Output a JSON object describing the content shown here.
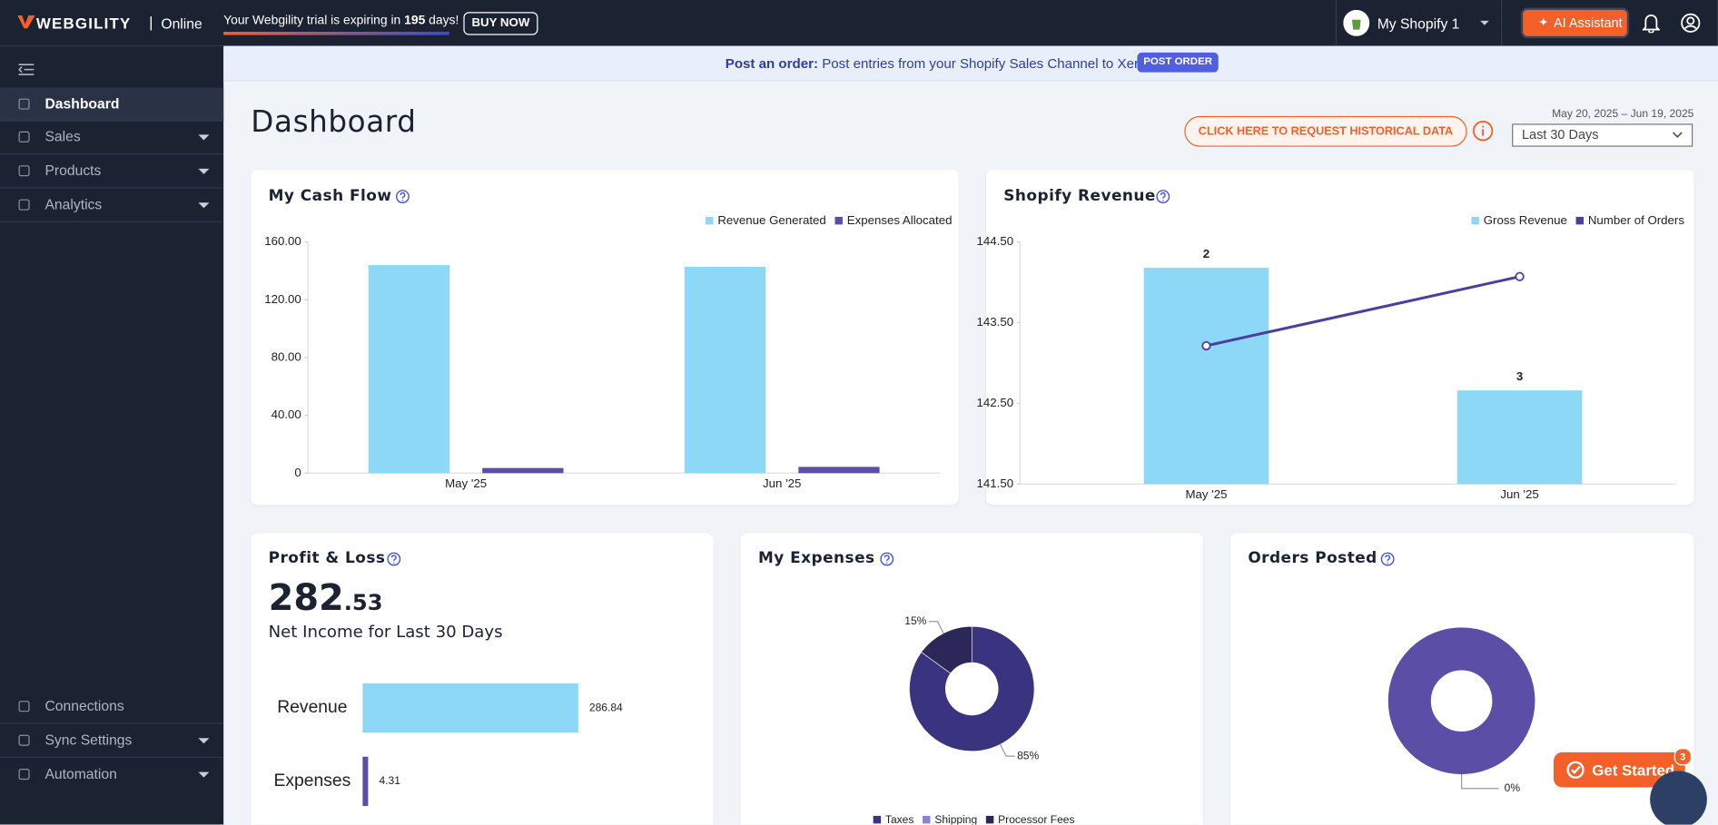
{
  "header": {
    "brand": "WEBGILITY",
    "edition": "Online",
    "trial_text": "Your Webgility trial is expiring in",
    "trial_days": "195",
    "trial_suffix": "days!",
    "buy_now": "BUY NOW",
    "store": "My Shopify 1",
    "ai_assistant": "AI Assistant"
  },
  "sidebar": {
    "items": [
      "Dashboard",
      "Sales",
      "Products",
      "Analytics"
    ],
    "bottom_items": [
      "Connections",
      "Sync Settings",
      "Automation"
    ]
  },
  "banner": {
    "label": "Post an order:",
    "text": "Post entries from your Shopify Sales Channel to Xero.",
    "button": "POST ORDER"
  },
  "page": {
    "title": "Dashboard",
    "historical_button": "CLICK HERE TO REQUEST HISTORICAL DATA",
    "date_range": "May 20, 2025 – Jun 19, 2025",
    "period": "Last 30 Days"
  },
  "cash_flow": {
    "type": "bar",
    "title": "My Cash Flow",
    "categories": [
      "May '25",
      "Jun '25"
    ],
    "series": [
      {
        "name": "Revenue Generated",
        "color": "#8dd7f7",
        "values": [
          144,
          142.84
        ]
      },
      {
        "name": "Expenses Allocated",
        "color": "#5a4ea6",
        "values": [
          3.5,
          4.3
        ]
      }
    ],
    "ylim": [
      0,
      160
    ],
    "yticks": [
      0,
      {
        "value": 40,
        "label": "40.00"
      },
      {
        "value": 80,
        "label": "80.00"
      },
      {
        "value": 120,
        "label": "120.00"
      },
      {
        "value": 160,
        "label": "160.00"
      }
    ]
  },
  "shopify_revenue": {
    "type": "bar_line",
    "title": "Shopify Revenue",
    "categories": [
      "May '25",
      "Jun '25"
    ],
    "series": [
      {
        "name": "Gross Revenue",
        "color": "#8dd7f7",
        "values": [
          144.18,
          142.66
        ]
      },
      {
        "name": "Number of Orders",
        "color": "#4a3f9e",
        "values": [
          2,
          3
        ],
        "axis": "y2"
      }
    ],
    "ylim": [
      141.5,
      144.5
    ],
    "yticks": [
      {
        "value": 141.5,
        "label": "141.50"
      },
      {
        "value": 142.5,
        "label": "142.50"
      },
      {
        "value": 143.5,
        "label": "143.50"
      },
      {
        "value": 144.5,
        "label": "144.50"
      }
    ],
    "y2lim": [
      0,
      3.5
    ]
  },
  "profit_loss": {
    "type": "hbar",
    "title": "Profit & Loss",
    "net_income_whole": "282",
    "net_income_cents": ".53",
    "subtitle": "Net Income for Last 30 Days",
    "categories": [
      "Revenue",
      "Expenses"
    ],
    "values": [
      286.84,
      4.31
    ],
    "colors": [
      "#8dd7f7",
      "#5a4ea6"
    ],
    "xlim": [
      0,
      360
    ]
  },
  "expenses": {
    "type": "donut",
    "title": "My Expenses",
    "categories": [
      "Taxes",
      "Shipping",
      "Processor Fees"
    ],
    "values": [
      85,
      0,
      15
    ],
    "value_labels": [
      "85%",
      null,
      "15%"
    ],
    "colors": [
      "#3a3480",
      "#8a80e0",
      "#2b2759"
    ]
  },
  "orders_posted": {
    "title": "Orders Posted",
    "label": "0%"
  },
  "get_started": {
    "label": "Get Started",
    "badge": "3"
  }
}
